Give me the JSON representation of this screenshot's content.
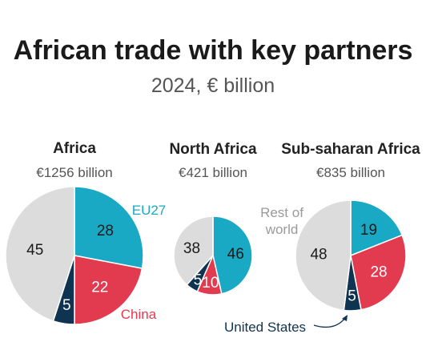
{
  "header": {
    "title": "African trade with key partners",
    "subtitle": "2024, € billion"
  },
  "colors": {
    "EU27": "#1aa9c4",
    "China": "#e23a4e",
    "United States": "#0f3451",
    "Rest of world": "#dcdcdc"
  },
  "chart_data": [
    {
      "type": "pie",
      "title": "Africa",
      "subtitle": "€1256 billion",
      "categories": [
        "EU27",
        "China",
        "United States",
        "Rest of world"
      ],
      "values": [
        28,
        22,
        5,
        45
      ],
      "labels": [
        "28",
        "22",
        "5",
        "45"
      ]
    },
    {
      "type": "pie",
      "title": "North Africa",
      "subtitle": "€421 billion",
      "categories": [
        "EU27",
        "China",
        "United States",
        "Rest of world"
      ],
      "values": [
        46,
        10,
        5,
        38
      ],
      "labels": [
        "46",
        "10",
        "5",
        "38"
      ]
    },
    {
      "type": "pie",
      "title": "Sub-saharan Africa",
      "subtitle": "€835 billion",
      "categories": [
        "EU27",
        "China",
        "United States",
        "Rest of world"
      ],
      "values": [
        19,
        28,
        5,
        48
      ],
      "labels": [
        "19",
        "28",
        "5",
        "48"
      ]
    }
  ],
  "annotations": {
    "eu27": "EU27",
    "china": "China",
    "rest_of_world_line1": "Rest of",
    "rest_of_world_line2": "world",
    "united_states": "United States"
  }
}
